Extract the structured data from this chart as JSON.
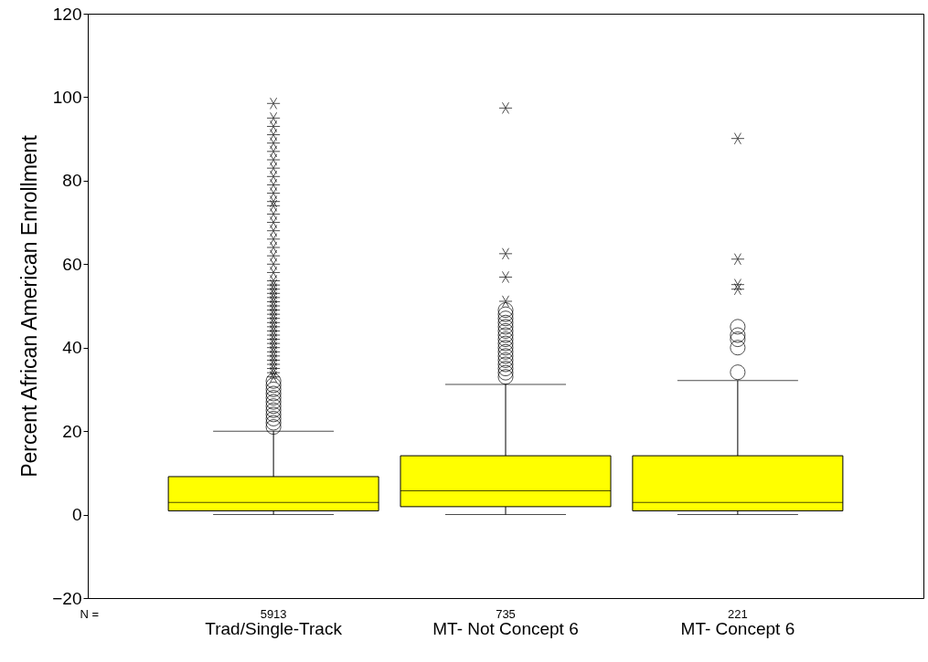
{
  "chart_data": {
    "type": "box",
    "ylabel": "Percent African American Enrollment",
    "categories": [
      "Trad/Single-Track",
      "MT- Not Concept 6",
      "MT- Concept 6"
    ],
    "color": "#ffff00",
    "boxes": [
      {
        "low": 0,
        "q1": 0.9,
        "median": 2.9,
        "q3": 9.1,
        "high": 20,
        "outliers": [
          21,
          22,
          23,
          24,
          25,
          26,
          27,
          28,
          29,
          30,
          31,
          32
        ]
      },
      {
        "low": 0,
        "q1": 1.9,
        "median": 5.7,
        "q3": 14.1,
        "high": 31.2,
        "outliers": [
          33,
          34,
          35,
          36,
          37,
          38,
          39,
          40,
          41,
          42,
          43,
          44,
          45,
          46,
          47,
          48,
          49
        ]
      },
      {
        "low": 0,
        "q1": 0.9,
        "median": 2.9,
        "q3": 14.1,
        "high": 32.1,
        "outliers": [
          34.1,
          40,
          42,
          43,
          45
        ]
      }
    ],
    "series": [
      {
        "type": "scatter",
        "marker": "cross",
        "color": "#000000",
        "x": [
          "Trad/Single-Track",
          "Trad/Single-Track",
          "Trad/Single-Track",
          "Trad/Single-Track",
          "Trad/Single-Track",
          "Trad/Single-Track",
          "Trad/Single-Track",
          "Trad/Single-Track",
          "Trad/Single-Track",
          "Trad/Single-Track",
          "Trad/Single-Track",
          "Trad/Single-Track",
          "Trad/Single-Track",
          "Trad/Single-Track",
          "Trad/Single-Track",
          "Trad/Single-Track",
          "Trad/Single-Track",
          "Trad/Single-Track",
          "Trad/Single-Track",
          "Trad/Single-Track",
          "Trad/Single-Track",
          "Trad/Single-Track",
          "Trad/Single-Track",
          "Trad/Single-Track",
          "Trad/Single-Track",
          "Trad/Single-Track",
          "Trad/Single-Track",
          "Trad/Single-Track",
          "Trad/Single-Track",
          "Trad/Single-Track",
          "Trad/Single-Track",
          "Trad/Single-Track",
          "Trad/Single-Track",
          "Trad/Single-Track",
          "Trad/Single-Track",
          "Trad/Single-Track",
          "Trad/Single-Track",
          "Trad/Single-Track",
          "Trad/Single-Track",
          "Trad/Single-Track",
          "Trad/Single-Track",
          "Trad/Single-Track",
          "Trad/Single-Track",
          "Trad/Single-Track",
          "Trad/Single-Track",
          "MT- Not Concept 6",
          "MT- Not Concept 6",
          "MT- Not Concept 6",
          "MT- Not Concept 6",
          "MT- Concept 6",
          "MT- Concept 6",
          "MT- Concept 6",
          "MT- Concept 6"
        ],
        "values": [
          33,
          34,
          35,
          36,
          37,
          38,
          39,
          40,
          41,
          42,
          43,
          44,
          45,
          46,
          47,
          48,
          49,
          50,
          51,
          52,
          53,
          54,
          55,
          56,
          58,
          60,
          62,
          64,
          66,
          68,
          70,
          72,
          74,
          75,
          77,
          79,
          81,
          83,
          85,
          87,
          89,
          91,
          93,
          95,
          98.5,
          51.1,
          56.9,
          62.5,
          97.4,
          54,
          55.1,
          61.2,
          90.1
        ]
      }
    ],
    "ylim": [
      -20,
      120
    ],
    "yticks": [
      -20,
      0,
      20,
      40,
      60,
      80,
      100,
      120
    ],
    "grid": false,
    "annotations": [
      "N =",
      "5913",
      "735",
      "221"
    ]
  }
}
